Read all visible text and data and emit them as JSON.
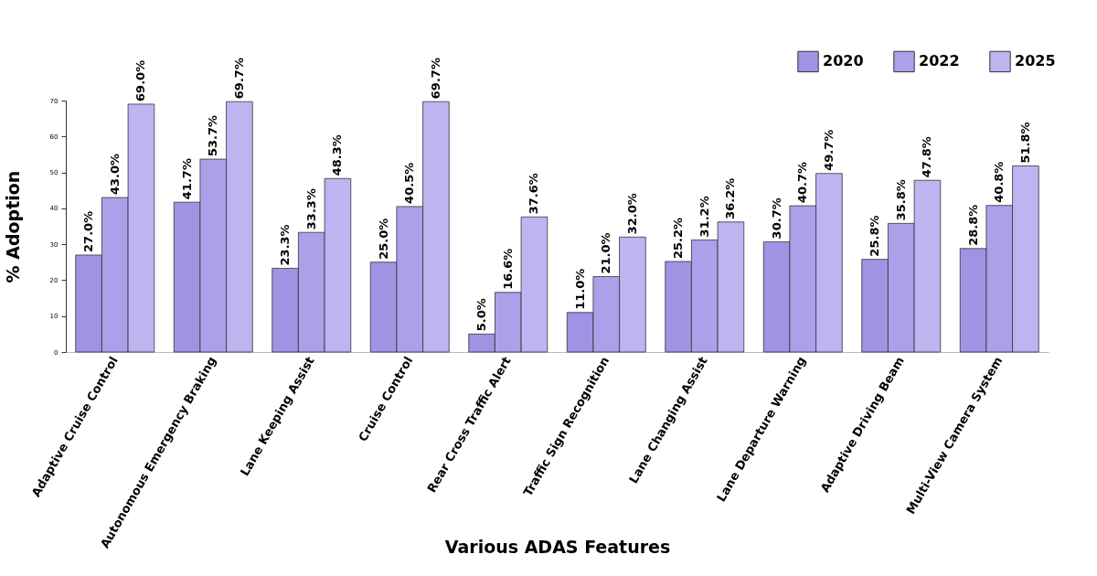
{
  "chart_data": {
    "type": "bar",
    "xlabel": "Various ADAS Features",
    "ylabel": "% Adoption",
    "categories": [
      "Adaptive Cruise Control",
      "Autonomous Emergency Braking",
      "Lane Keeping Assist",
      "Cruise Control",
      "Rear Cross Traffic Alert",
      "Traffic Sign Recognition",
      "Lane Changing Assist",
      "Lane Departure Warning",
      "Adaptive Driving Beam",
      "Multi-View Camera System"
    ],
    "series": [
      {
        "name": "2020",
        "color": "#9f94e4",
        "values": [
          27.0,
          41.7,
          23.3,
          25.0,
          5.0,
          11.0,
          25.2,
          30.7,
          25.8,
          28.8
        ],
        "value_labels": [
          "27.0%",
          "41.7%",
          "23.3%",
          "25.0%",
          "5.0%",
          "11.0%",
          "25.2%",
          "30.7%",
          "25.8%",
          "28.8%"
        ]
      },
      {
        "name": "2022",
        "color": "#ac a0ea",
        "values": [
          43.0,
          53.7,
          33.3,
          40.5,
          16.6,
          21.0,
          31.2,
          40.7,
          35.8,
          40.8
        ],
        "value_labels": [
          "43.0%",
          "53.7%",
          "33.3%",
          "40.5%",
          "16.6%",
          "21.0%",
          "31.2%",
          "40.7%",
          "35.8%",
          "40.8%"
        ]
      },
      {
        "name": "2025",
        "color": "#beb4f1",
        "values": [
          69.0,
          69.7,
          48.3,
          69.7,
          37.6,
          32.0,
          36.2,
          49.7,
          47.8,
          51.8
        ],
        "value_labels": [
          "69.0%",
          "69.7%",
          "48.3%",
          "69.7%",
          "37.6%",
          "32.0%",
          "36.2%",
          "49.7%",
          "47.8%",
          "51.8%"
        ]
      }
    ],
    "ylim": [
      0,
      70
    ],
    "yticks": [
      0,
      10,
      20,
      30,
      40,
      50,
      60,
      70
    ],
    "grid": false,
    "legend": "top right"
  }
}
